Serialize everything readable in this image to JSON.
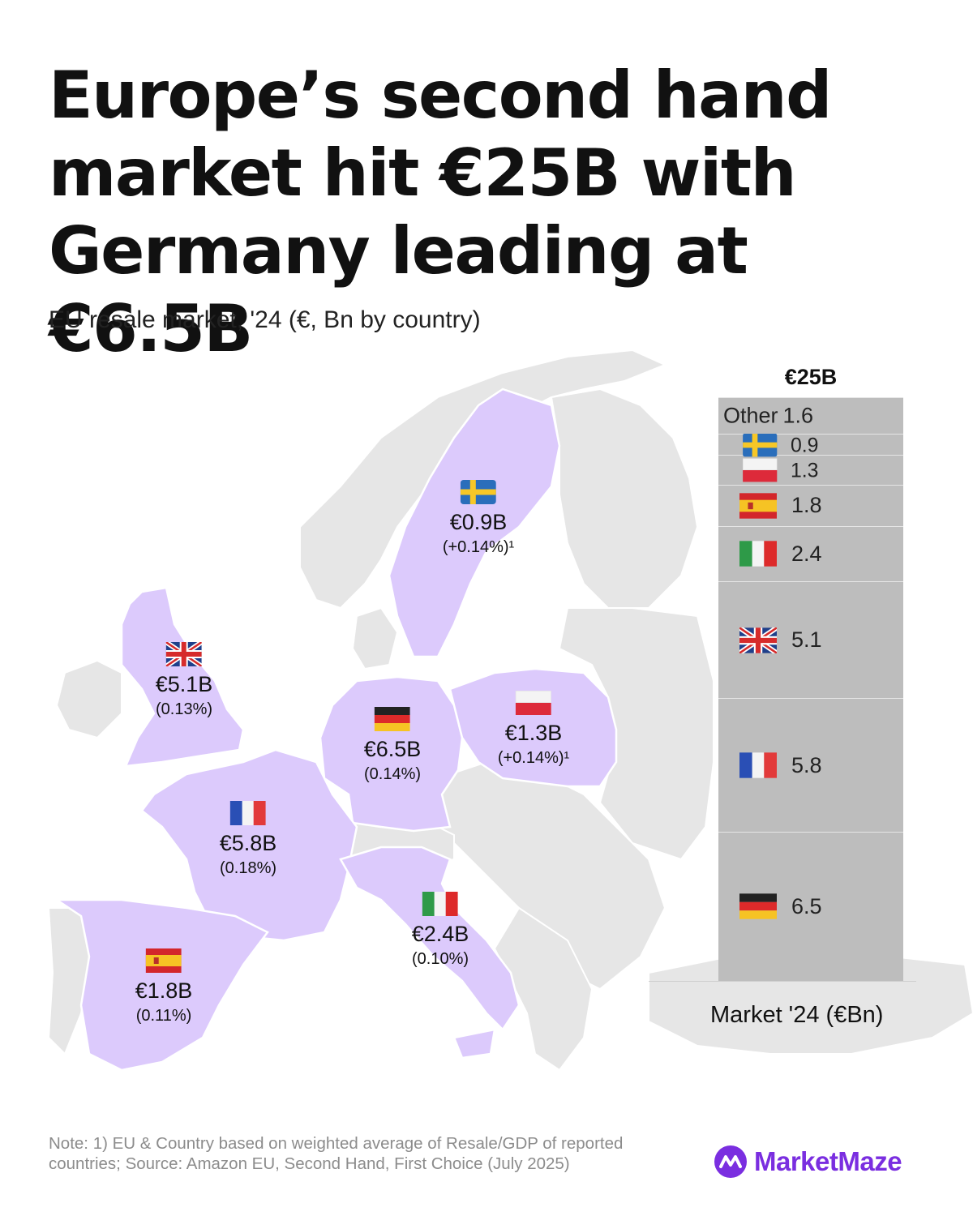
{
  "header": {
    "title": "Europe’s second hand market hit €25B with Germany leading at €6.5B",
    "subtitle": "EU resale market, '24 (€, Bn by country)"
  },
  "colors": {
    "highlight_country": "#dccafc",
    "other_land": "#e6e6e6",
    "stack_bar": "#bdbdbd",
    "brand": "#7a2ee0"
  },
  "map_labels": [
    {
      "country": "Sweden",
      "flag": "sweden-flag",
      "value": "€0.9B",
      "change": "(+0.14%)¹"
    },
    {
      "country": "United Kingdom",
      "flag": "uk-flag",
      "value": "€5.1B",
      "change": "(0.13%)"
    },
    {
      "country": "Germany",
      "flag": "germany-flag",
      "value": "€6.5B",
      "change": "(0.14%)"
    },
    {
      "country": "Poland",
      "flag": "poland-flag",
      "value": "€1.3B",
      "change": "(+0.14%)¹"
    },
    {
      "country": "France",
      "flag": "france-flag",
      "value": "€5.8B",
      "change": "(0.18%)"
    },
    {
      "country": "Italy",
      "flag": "italy-flag",
      "value": "€2.4B",
      "change": "(0.10%)"
    },
    {
      "country": "Spain",
      "flag": "spain-flag",
      "value": "€1.8B",
      "change": "(0.11%)"
    }
  ],
  "chart_data": {
    "type": "bar",
    "stacked": true,
    "total_label": "€25B",
    "xlabel": "Market '24 (€Bn)",
    "total": 25,
    "segments": [
      {
        "name": "",
        "flag": "germany-flag",
        "value": 6.5,
        "label": "6.5"
      },
      {
        "name": "",
        "flag": "france-flag",
        "value": 5.8,
        "label": "5.8"
      },
      {
        "name": "",
        "flag": "uk-flag",
        "value": 5.1,
        "label": "5.1"
      },
      {
        "name": "",
        "flag": "italy-flag",
        "value": 2.4,
        "label": "2.4"
      },
      {
        "name": "",
        "flag": "spain-flag",
        "value": 1.8,
        "label": "1.8"
      },
      {
        "name": "",
        "flag": "poland-flag",
        "value": 1.3,
        "label": "1.3"
      },
      {
        "name": "",
        "flag": "sweden-flag",
        "value": 0.9,
        "label": "0.9"
      },
      {
        "name": "Other",
        "flag": "",
        "value": 1.6,
        "label": "1.6"
      }
    ]
  },
  "footer": {
    "note": "Note: 1) EU & Country based on weighted average of Resale/GDP of reported countries; Source: Amazon EU, Second Hand, First Choice (July 2025)",
    "brand": "MarketMaze",
    "brand_icon": "marketmaze-logo-icon"
  }
}
